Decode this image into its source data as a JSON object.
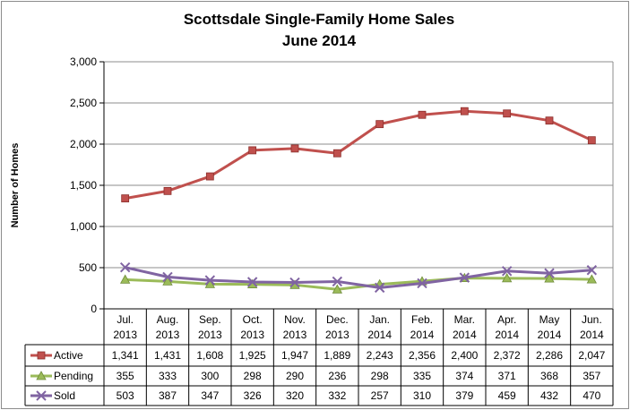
{
  "chart_data": {
    "type": "line",
    "title": "Scottsdale Single-Family Home Sales",
    "subtitle": "June 2014",
    "ylabel": "Number of Homes",
    "xlabel": "",
    "ylim": [
      0,
      3000
    ],
    "yticks": [
      "0",
      "500",
      "1,000",
      "1,500",
      "2,000",
      "2,500",
      "3,000"
    ],
    "ytick_values": [
      0,
      500,
      1000,
      1500,
      2000,
      2500,
      3000
    ],
    "grid": true,
    "legend": "data-table-left",
    "categories": [
      [
        "Jul.",
        "2013"
      ],
      [
        "Aug.",
        "2013"
      ],
      [
        "Sep.",
        "2013"
      ],
      [
        "Oct.",
        "2013"
      ],
      [
        "Nov.",
        "2013"
      ],
      [
        "Dec.",
        "2013"
      ],
      [
        "Jan.",
        "2014"
      ],
      [
        "Feb.",
        "2014"
      ],
      [
        "Mar.",
        "2014"
      ],
      [
        "Apr.",
        "2014"
      ],
      [
        "May",
        "2014"
      ],
      [
        "Jun.",
        "2014"
      ]
    ],
    "series": [
      {
        "name": "Active",
        "color": "#c0504d",
        "marker": "square",
        "values": [
          1341,
          1431,
          1608,
          1925,
          1947,
          1889,
          2243,
          2356,
          2400,
          2372,
          2286,
          2047
        ],
        "labels": [
          "1,341",
          "1,431",
          "1,608",
          "1,925",
          "1,947",
          "1,889",
          "2,243",
          "2,356",
          "2,400",
          "2,372",
          "2,286",
          "2,047"
        ]
      },
      {
        "name": "Pending",
        "color": "#9bbb59",
        "marker": "triangle",
        "values": [
          355,
          333,
          300,
          298,
          290,
          236,
          298,
          335,
          374,
          371,
          368,
          357
        ],
        "labels": [
          "355",
          "333",
          "300",
          "298",
          "290",
          "236",
          "298",
          "335",
          "374",
          "371",
          "368",
          "357"
        ]
      },
      {
        "name": "Sold",
        "color": "#8064a2",
        "marker": "x",
        "values": [
          503,
          387,
          347,
          326,
          320,
          332,
          257,
          310,
          379,
          459,
          432,
          470
        ],
        "labels": [
          "503",
          "387",
          "347",
          "326",
          "320",
          "332",
          "257",
          "310",
          "379",
          "459",
          "432",
          "470"
        ]
      }
    ]
  }
}
